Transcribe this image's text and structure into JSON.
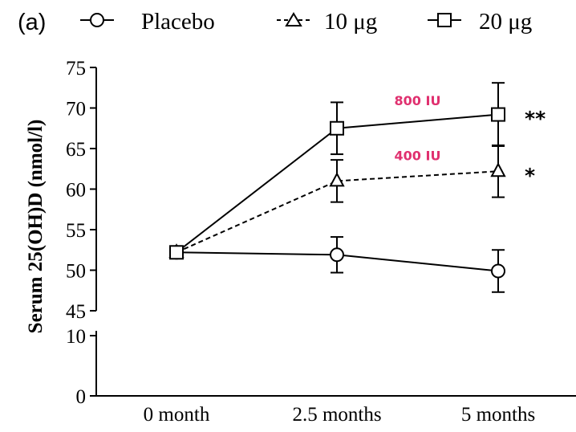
{
  "chart_data": {
    "type": "line",
    "panel_label": "(a)",
    "categories": [
      "0 month",
      "2.5 months",
      "5 months"
    ],
    "ylabel": "Serum 25(OH)D (nmol/l)",
    "ylim": [
      45,
      75
    ],
    "y_ticks": [
      "75",
      "70",
      "65",
      "60",
      "55",
      "50",
      "45",
      "10",
      "0"
    ],
    "y_axis_break": {
      "lower_segment_ticks": [
        "0",
        "10"
      ],
      "upper_segment_range": [
        45,
        75
      ]
    },
    "series": [
      {
        "name": "Placebo",
        "marker": "circle",
        "line_style": "solid",
        "values": [
          52.2,
          51.9,
          49.9
        ],
        "errors": [
          0,
          2.2,
          2.6
        ]
      },
      {
        "name": "10 μg",
        "marker": "triangle",
        "line_style": "dashed",
        "values": [
          52.2,
          61.0,
          62.2
        ],
        "errors": [
          0,
          2.6,
          3.2
        ],
        "annotation": "400 IU",
        "significance": "*"
      },
      {
        "name": "20 μg",
        "marker": "square",
        "line_style": "solid",
        "values": [
          52.2,
          67.5,
          69.2
        ],
        "errors": [
          0,
          3.2,
          3.9
        ],
        "annotation": "800 IU",
        "significance": "**"
      }
    ],
    "annotation_color": "#e0306f",
    "grid": false,
    "legend_position": "top"
  }
}
